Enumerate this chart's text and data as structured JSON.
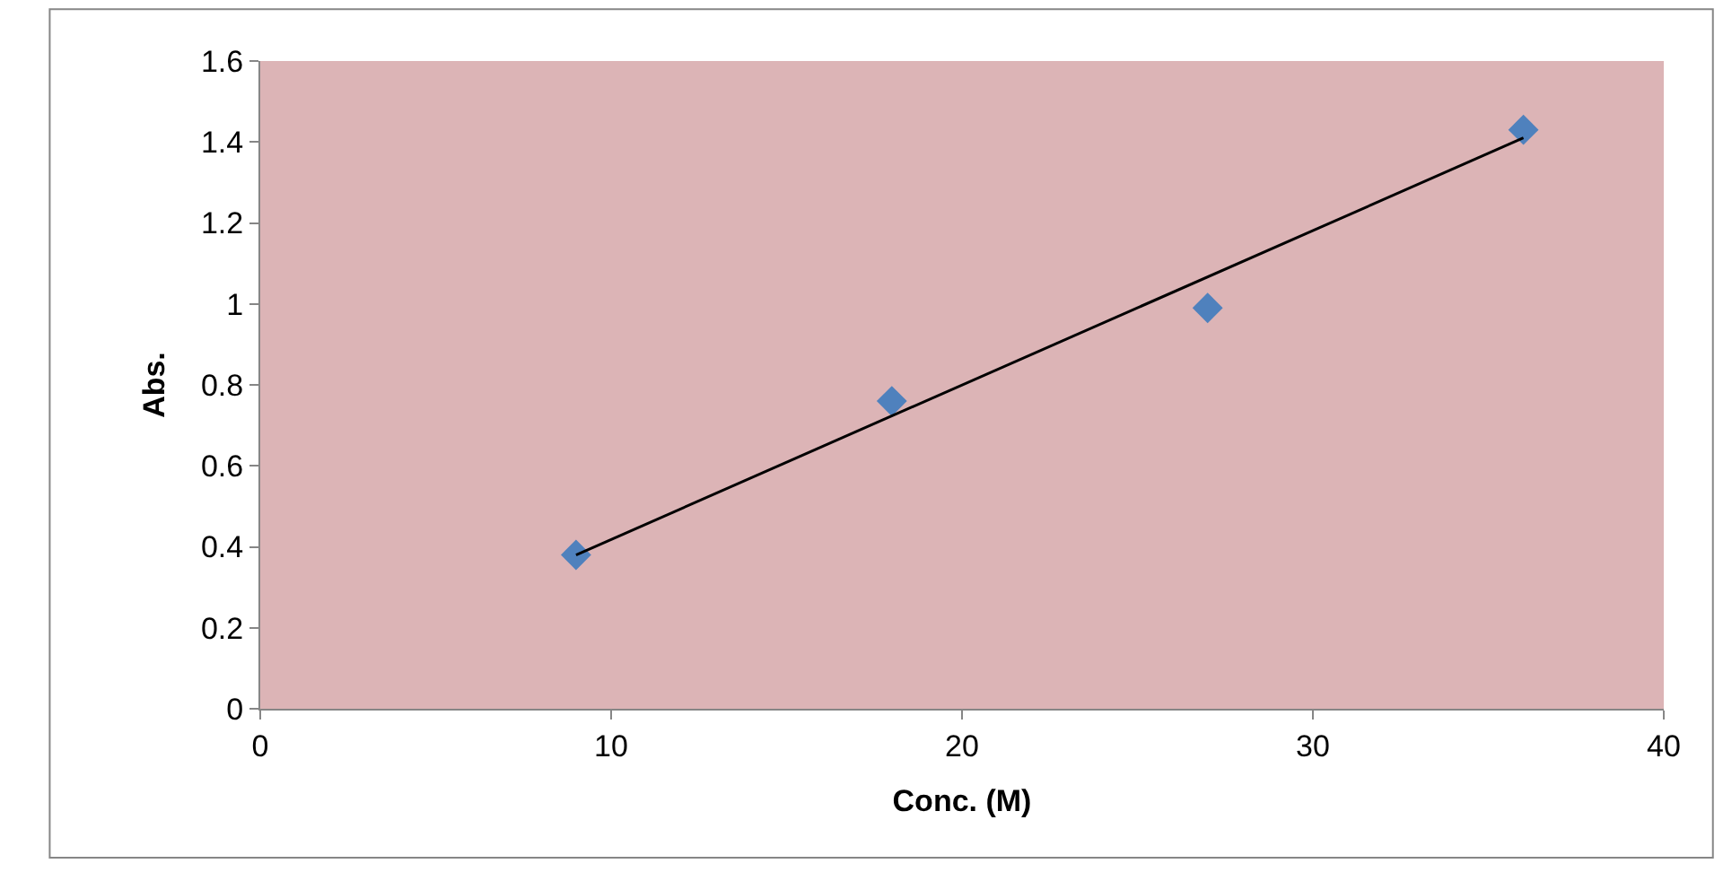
{
  "chart_data": {
    "type": "scatter",
    "xlabel": "Conc. (M)",
    "ylabel": "Abs.",
    "x": [
      9,
      18,
      27,
      36
    ],
    "series": [
      {
        "color": "#4f81bd",
        "marker": "diamond",
        "values": [
          0.38,
          0.76,
          0.99,
          1.43
        ]
      },
      {
        "type": "line",
        "color": "#000000",
        "x": [
          9,
          36
        ],
        "values": [
          0.38,
          1.41
        ],
        "marker": "none",
        "line_style": "solid"
      }
    ],
    "xlim": [
      0,
      40
    ],
    "xticks": [
      0,
      10,
      20,
      30,
      40
    ],
    "ylim": [
      0,
      1.6
    ],
    "yticks": [
      0,
      0.2,
      0.4,
      0.6,
      0.8,
      1,
      1.2,
      1.4,
      1.6
    ],
    "grid": false,
    "legend": false
  }
}
